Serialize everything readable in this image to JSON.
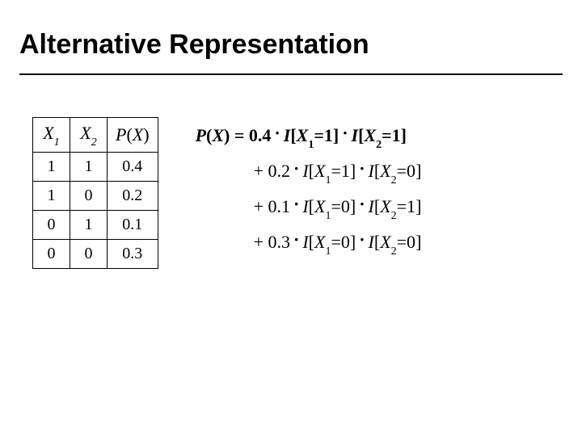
{
  "title": "Alternative Representation",
  "table": {
    "columns": {
      "x1_var": "X",
      "x1_sub": "1",
      "x2_var": "X",
      "x2_sub": "2",
      "px_var_p": "P",
      "px_paren_open": "(",
      "px_var_x": "X",
      "px_paren_close": ")"
    },
    "rows": [
      {
        "x1": "1",
        "x2": "1",
        "px": "0.4"
      },
      {
        "x1": "1",
        "x2": "0",
        "px": "0.2"
      },
      {
        "x1": "0",
        "x2": "1",
        "px": "0.1"
      },
      {
        "x1": "0",
        "x2": "0",
        "px": "0.3"
      }
    ]
  },
  "equation": {
    "lhs_p": "P",
    "lhs_open": "(",
    "lhs_x": "X",
    "lhs_close": ")",
    "eq": " = ",
    "dot": "·",
    "plus": "+ ",
    "I": "I",
    "br_open": "[",
    "br_close": "]",
    "X": "X",
    "eq1": "=1",
    "eq0": "=0",
    "terms": [
      {
        "coef": "0.4",
        "a_sub": "1",
        "a_val": "=1",
        "b_sub": "2",
        "b_val": "=1",
        "bold": true
      },
      {
        "coef": "0.2",
        "a_sub": "1",
        "a_val": "=1",
        "b_sub": "2",
        "b_val": "=0",
        "bold": false
      },
      {
        "coef": "0.1",
        "a_sub": "1",
        "a_val": "=0",
        "b_sub": "2",
        "b_val": "=1",
        "bold": false
      },
      {
        "coef": "0.3",
        "a_sub": "1",
        "a_val": "=0",
        "b_sub": "2",
        "b_val": "=0",
        "bold": false
      }
    ]
  },
  "colors": {
    "text": "#000000",
    "rule": "#000000",
    "table_border": "#000000",
    "background": "#ffffff"
  },
  "fonts": {
    "title_family": "Arial, Helvetica, sans-serif",
    "title_size_pt": 26,
    "body_family": "Times New Roman, serif",
    "body_size_pt": 17
  }
}
